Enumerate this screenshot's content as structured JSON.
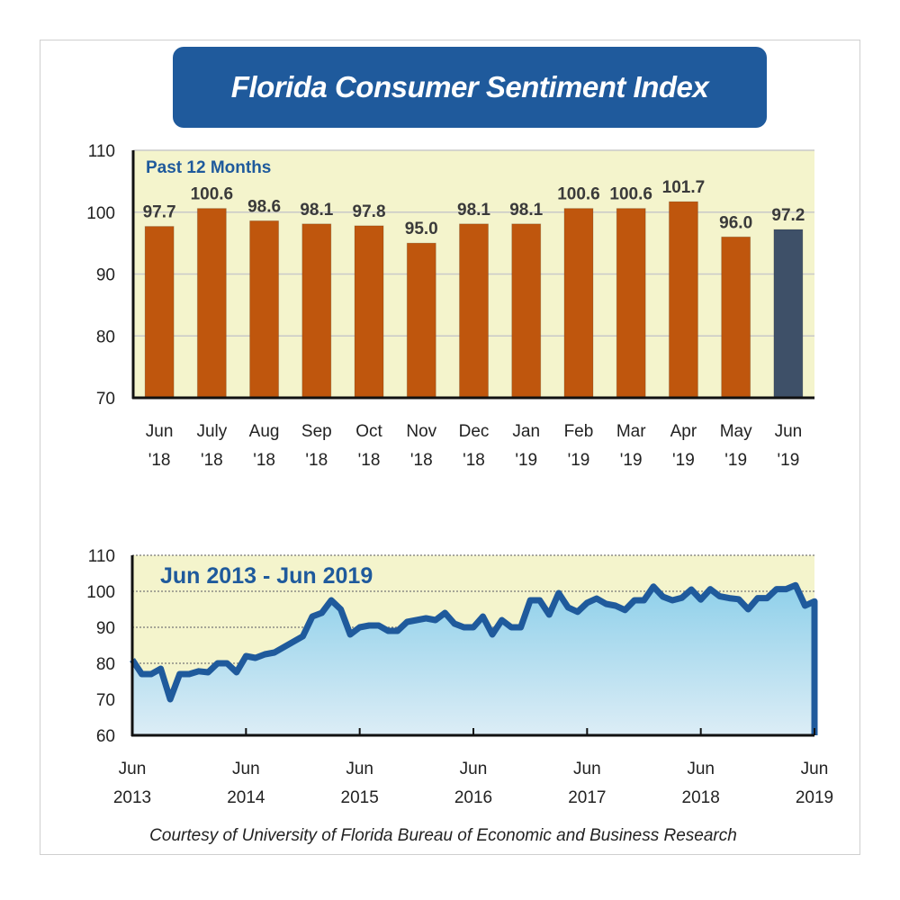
{
  "title": "Florida Consumer Sentiment Index",
  "footer": "Courtesy of University of Florida Bureau of Economic and Business Research",
  "colors": {
    "title_bg": "#1f5a9c",
    "bar": "#bf560d",
    "bar_highlight": "#3e5068",
    "plot_bg": "#f4f4cc",
    "line": "#1f5a9c",
    "area_top": "#8fd0ea",
    "area_bottom": "#dcedf6"
  },
  "chart_data": [
    {
      "type": "bar",
      "subtitle": "Past 12 Months",
      "categories": [
        [
          "Jun",
          "'18"
        ],
        [
          "July",
          "'18"
        ],
        [
          "Aug",
          "'18"
        ],
        [
          "Sep",
          "'18"
        ],
        [
          "Oct",
          "'18"
        ],
        [
          "Nov",
          "'18"
        ],
        [
          "Dec",
          "'18"
        ],
        [
          "Jan",
          "'19"
        ],
        [
          "Feb",
          "'19"
        ],
        [
          "Mar",
          "'19"
        ],
        [
          "Apr",
          "'19"
        ],
        [
          "May",
          "'19"
        ],
        [
          "Jun",
          "'19"
        ]
      ],
      "values": [
        97.7,
        100.6,
        98.6,
        98.1,
        97.8,
        95.0,
        98.1,
        98.1,
        100.6,
        100.6,
        101.7,
        96.0,
        97.2
      ],
      "value_labels": [
        "97.7",
        "100.6",
        "98.6",
        "98.1",
        "97.8",
        "95.0",
        "98.1",
        "98.1",
        "100.6",
        "100.6",
        "101.7",
        "96.0",
        "97.2"
      ],
      "highlight_index": 12,
      "ylim": [
        70,
        110
      ],
      "yticks": [
        70,
        80,
        90,
        100,
        110
      ],
      "grid": true
    },
    {
      "type": "area",
      "subtitle": "Jun 2013 - Jun 2019",
      "x_start": "2013-06",
      "x_end": "2019-06",
      "frequency": "monthly",
      "values": [
        81,
        77,
        77,
        78.5,
        70,
        77,
        77,
        77.8,
        77.5,
        80,
        80,
        77.5,
        82,
        81.5,
        82.5,
        83,
        84.5,
        86,
        87.5,
        93,
        94,
        97.5,
        95,
        88,
        90,
        90.5,
        90.5,
        89,
        89,
        91.5,
        92,
        92.5,
        92,
        94,
        91,
        90,
        90,
        93,
        88,
        92,
        90,
        90,
        97.5,
        97.5,
        93.5,
        99.5,
        95.5,
        94.3,
        96.8,
        98,
        96.5,
        96,
        94.8,
        97.5,
        97.5,
        101.3,
        98.5,
        97.5,
        98.2,
        100.5,
        97.7,
        100.6,
        98.6,
        98.1,
        97.8,
        95.0,
        98.1,
        98.1,
        100.6,
        100.6,
        101.7,
        96.0,
        97.2
      ],
      "xticks": [
        [
          "Jun",
          "2013"
        ],
        [
          "Jun",
          "2014"
        ],
        [
          "Jun",
          "2015"
        ],
        [
          "Jun",
          "2016"
        ],
        [
          "Jun",
          "2017"
        ],
        [
          "Jun",
          "2018"
        ],
        [
          "Jun",
          "2019"
        ]
      ],
      "ylim": [
        60,
        110
      ],
      "yticks": [
        60,
        70,
        80,
        90,
        100,
        110
      ],
      "grid": true
    }
  ]
}
